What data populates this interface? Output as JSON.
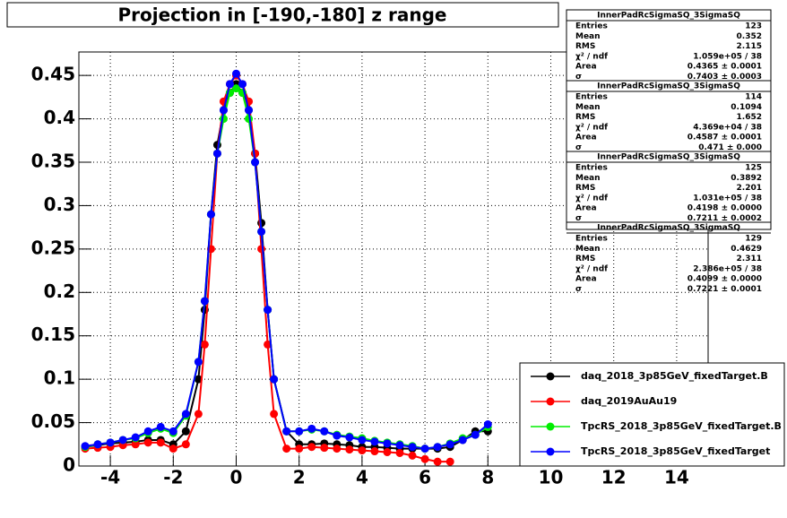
{
  "chart_data": {
    "type": "line",
    "title": "Projection in [-190,-180] z range",
    "x": [
      -4.8,
      -4.4,
      -4.0,
      -3.6,
      -3.2,
      -2.8,
      -2.4,
      -2.0,
      -1.6,
      -1.2,
      -1.0,
      -0.8,
      -0.6,
      -0.4,
      -0.2,
      0,
      0.2,
      0.4,
      0.6,
      0.8,
      1.0,
      1.2,
      1.6,
      2.0,
      2.4,
      2.8,
      3.2,
      3.6,
      4.0,
      4.4,
      4.8,
      5.2,
      5.6,
      6.0,
      6.4,
      6.8,
      7.2,
      7.6,
      8.0
    ],
    "series": [
      {
        "name": "daq_2018_3p85GeV_fixedTarget.B",
        "color": "#000000",
        "values": [
          0.022,
          0.024,
          0.026,
          0.027,
          0.028,
          0.03,
          0.03,
          0.025,
          0.04,
          0.1,
          0.18,
          0.29,
          0.37,
          0.41,
          0.43,
          0.44,
          0.43,
          0.41,
          0.36,
          0.28,
          0.18,
          0.1,
          0.04,
          0.025,
          0.025,
          0.026,
          0.025,
          0.024,
          0.022,
          0.022,
          0.021,
          0.02,
          0.02,
          0.02,
          0.02,
          0.022,
          0.03,
          0.04,
          0.04
        ]
      },
      {
        "name": "daq_2019AuAu19",
        "color": "#ff0000",
        "values": [
          0.02,
          0.021,
          0.022,
          0.024,
          0.025,
          0.027,
          0.027,
          0.02,
          0.025,
          0.06,
          0.14,
          0.25,
          0.36,
          0.42,
          0.44,
          0.45,
          0.44,
          0.42,
          0.36,
          0.25,
          0.14,
          0.06,
          0.02,
          0.02,
          0.022,
          0.021,
          0.02,
          0.019,
          0.018,
          0.017,
          0.016,
          0.015,
          0.012,
          0.008,
          0.005,
          0.005,
          null,
          null,
          null
        ]
      },
      {
        "name": "TpcRS_2018_3p85GeV_fixedTarget.B",
        "color": "#00ee00",
        "values": [
          0.022,
          0.025,
          0.027,
          0.03,
          0.032,
          0.038,
          0.043,
          0.038,
          0.058,
          0.12,
          0.19,
          0.29,
          0.36,
          0.4,
          0.43,
          0.435,
          0.43,
          0.4,
          0.35,
          0.27,
          0.18,
          0.1,
          0.04,
          0.04,
          0.042,
          0.04,
          0.036,
          0.034,
          0.032,
          0.029,
          0.027,
          0.025,
          0.023,
          0.02,
          0.022,
          0.026,
          0.032,
          0.036,
          0.045
        ]
      },
      {
        "name": "TpcRS_2018_3p85GeV_fixedTarget",
        "color": "#0000ff",
        "values": [
          0.023,
          0.025,
          0.027,
          0.03,
          0.033,
          0.04,
          0.045,
          0.04,
          0.06,
          0.12,
          0.19,
          0.29,
          0.36,
          0.41,
          0.44,
          0.452,
          0.44,
          0.41,
          0.35,
          0.27,
          0.18,
          0.1,
          0.04,
          0.04,
          0.043,
          0.04,
          0.035,
          0.033,
          0.03,
          0.028,
          0.026,
          0.024,
          0.022,
          0.02,
          0.022,
          0.025,
          0.03,
          0.036,
          0.048
        ]
      }
    ],
    "xlim": [
      -5,
      15
    ],
    "ylim": [
      0,
      0.477
    ],
    "xticks": [
      -4,
      -2,
      0,
      2,
      4,
      6,
      8,
      10,
      12,
      14
    ],
    "yticks": [
      0,
      0.05,
      0.1,
      0.15,
      0.2,
      0.25,
      0.3,
      0.35,
      0.4,
      0.45
    ],
    "grid": true,
    "stats": [
      {
        "title": "InnerPadRcSigmaSQ_3SigmaSQ",
        "rows": [
          [
            "Entries",
            "123"
          ],
          [
            "Mean",
            "0.352"
          ],
          [
            "RMS",
            "2.115"
          ],
          [
            "χ² / ndf",
            "1.059e+05 / 38"
          ],
          [
            "Area",
            "0.4365 ± 0.0001"
          ],
          [
            "σ",
            "0.7403 ± 0.0003"
          ]
        ]
      },
      {
        "title": "InnerPadRcSigmaSQ_3SigmaSQ",
        "rows": [
          [
            "Entries",
            "114"
          ],
          [
            "Mean",
            "0.1094"
          ],
          [
            "RMS",
            "1.652"
          ],
          [
            "χ² / ndf",
            "4.369e+04 / 38"
          ],
          [
            "Area",
            "0.4587 ± 0.0001"
          ],
          [
            "σ",
            "0.471 ± 0.000"
          ]
        ]
      },
      {
        "title": "InnerPadRcSigmaSQ_3SigmaSQ",
        "rows": [
          [
            "Entries",
            "125"
          ],
          [
            "Mean",
            "0.3892"
          ],
          [
            "RMS",
            "2.201"
          ],
          [
            "χ² / ndf",
            "1.031e+05 / 38"
          ],
          [
            "Area",
            "0.4198 ± 0.0000"
          ],
          [
            "σ",
            "0.7211 ± 0.0002"
          ]
        ]
      },
      {
        "title": "InnerPadRcSigmaSQ_3SigmaSQ",
        "rows": [
          [
            "Entries",
            "129"
          ],
          [
            "Mean",
            "0.4629"
          ],
          [
            "RMS",
            "2.311"
          ],
          [
            "χ² / ndf",
            "2.386e+05 / 38"
          ],
          [
            "Area",
            "0.4099 ± 0.0000"
          ],
          [
            "σ",
            "0.7221 ± 0.0001"
          ]
        ]
      }
    ]
  }
}
